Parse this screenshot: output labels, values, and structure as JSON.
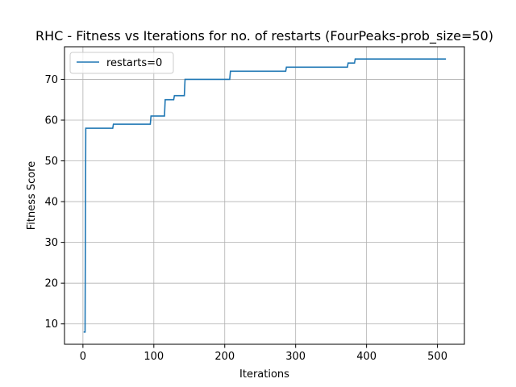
{
  "chart_data": {
    "type": "line",
    "title": "RHC - Fitness vs Iterations for no. of restarts (FourPeaks-prob_size=50)",
    "xlabel": "Iterations",
    "ylabel": "Fitness Score",
    "xlim": [
      -26,
      538
    ],
    "ylim": [
      5,
      78
    ],
    "xticks": [
      0,
      100,
      200,
      300,
      400,
      500
    ],
    "yticks": [
      10,
      20,
      30,
      40,
      50,
      60,
      70
    ],
    "grid": true,
    "legend": {
      "position": "upper left"
    },
    "step": "pre",
    "series": [
      {
        "name": "restarts=0",
        "color": "#1f77b4",
        "x": [
          1,
          2,
          3,
          4,
          42,
          43,
          95,
          96,
          115,
          116,
          128,
          129,
          143,
          144,
          207,
          208,
          286,
          287,
          373,
          374,
          383,
          384,
          512
        ],
        "y": [
          8,
          8,
          8,
          58,
          58,
          59,
          59,
          61,
          61,
          65,
          65,
          66,
          66,
          70,
          70,
          72,
          72,
          73,
          73,
          74,
          74,
          75,
          75
        ]
      }
    ]
  }
}
